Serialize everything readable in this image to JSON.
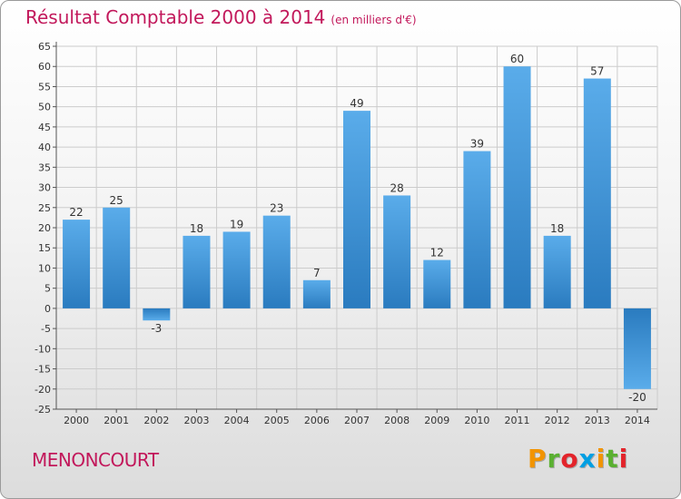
{
  "title": "Résultat Comptable 2000 à 2014",
  "unit": "(en milliers d'€)",
  "place": "MENONCOURT",
  "logo": {
    "letters": [
      {
        "ch": "P",
        "color": "#f29400"
      },
      {
        "ch": "r",
        "color": "#5ab031"
      },
      {
        "ch": "o",
        "color": "#e3242b"
      },
      {
        "ch": "x",
        "color": "#009fe3"
      },
      {
        "ch": "i",
        "color": "#f29400"
      },
      {
        "ch": "t",
        "color": "#5ab031"
      },
      {
        "ch": "i",
        "color": "#e3242b"
      }
    ]
  },
  "colors": {
    "title": "#c2185b",
    "bar_light": "#5aacea",
    "bar_dark": "#2a7bbf",
    "grid": "#cccccc"
  },
  "chart_data": {
    "type": "bar",
    "title": "Résultat Comptable 2000 à 2014",
    "subtitle": "(en milliers d'€)",
    "xlabel": "",
    "ylabel": "",
    "categories": [
      "2000",
      "2001",
      "2002",
      "2003",
      "2004",
      "2005",
      "2006",
      "2007",
      "2008",
      "2009",
      "2010",
      "2011",
      "2012",
      "2013",
      "2014"
    ],
    "values": [
      22,
      25,
      -3,
      18,
      19,
      23,
      7,
      49,
      28,
      12,
      39,
      60,
      18,
      57,
      -20
    ],
    "ylim": [
      -25,
      65
    ],
    "yticks": [
      65,
      60,
      55,
      50,
      45,
      40,
      35,
      30,
      25,
      20,
      15,
      10,
      5,
      0,
      -5,
      -10,
      -15,
      -20,
      -25
    ],
    "grid": true
  }
}
